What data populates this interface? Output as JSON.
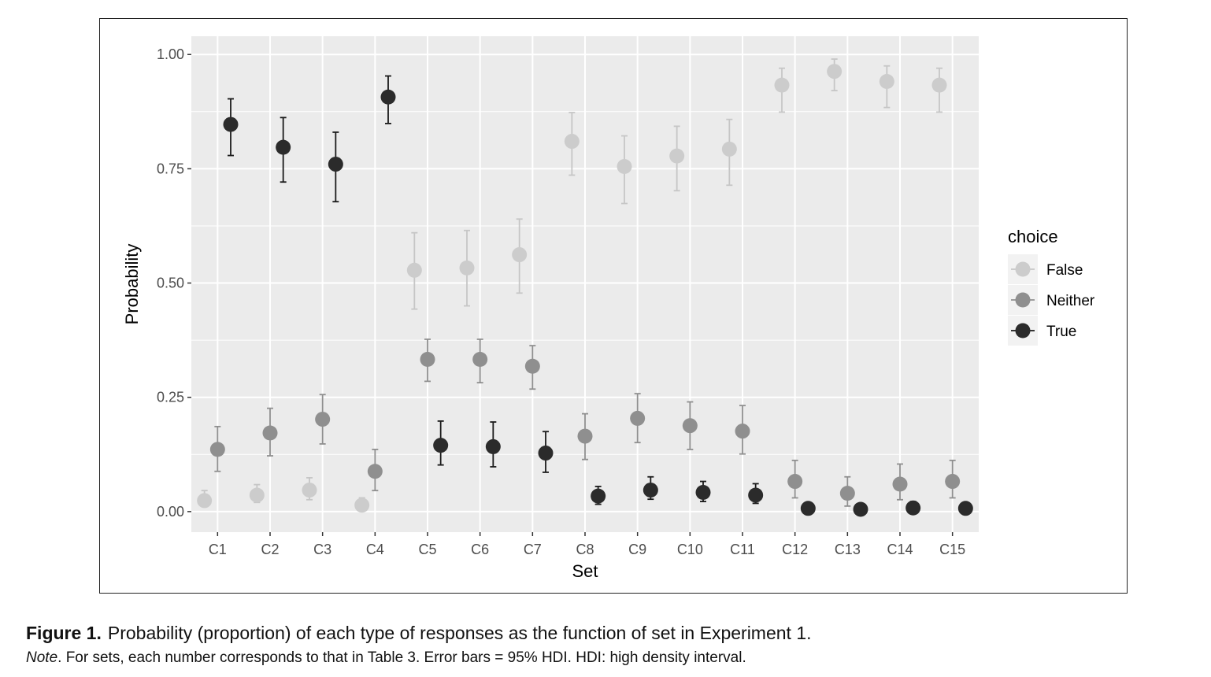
{
  "chart_data": {
    "type": "scatter",
    "xlabel": "Set",
    "ylabel": "Probability",
    "categories": [
      "C1",
      "C2",
      "C3",
      "C4",
      "C5",
      "C6",
      "C7",
      "C8",
      "C9",
      "C10",
      "C11",
      "C12",
      "C13",
      "C14",
      "C15"
    ],
    "ylim": [
      -0.045,
      1.04
    ],
    "yticks": [
      0.0,
      0.25,
      0.5,
      0.75,
      1.0
    ],
    "ytick_labels": [
      "0.00",
      "0.25",
      "0.50",
      "0.75",
      "1.00"
    ],
    "grid": true,
    "legend": {
      "title": "choice",
      "position": "right"
    },
    "series": [
      {
        "name": "False",
        "color": "#cccccc",
        "errorbar_color": "#c6c6c6",
        "values": [
          0.024,
          0.036,
          0.047,
          0.014,
          0.528,
          0.533,
          0.562,
          0.81,
          0.755,
          0.778,
          0.793,
          0.933,
          0.963,
          0.941,
          0.933
        ],
        "lower": [
          0.012,
          0.02,
          0.026,
          0.005,
          0.443,
          0.45,
          0.478,
          0.736,
          0.674,
          0.702,
          0.714,
          0.874,
          0.921,
          0.884,
          0.874
        ],
        "upper": [
          0.046,
          0.059,
          0.074,
          0.03,
          0.61,
          0.615,
          0.64,
          0.873,
          0.822,
          0.843,
          0.858,
          0.97,
          0.99,
          0.975,
          0.97
        ]
      },
      {
        "name": "Neither",
        "color": "#8f8f8f",
        "errorbar_color": "#8f8f8f",
        "values": [
          0.136,
          0.172,
          0.202,
          0.088,
          0.333,
          0.333,
          0.318,
          0.165,
          0.204,
          0.188,
          0.176,
          0.066,
          0.04,
          0.06,
          0.066
        ],
        "lower": [
          0.088,
          0.122,
          0.148,
          0.046,
          0.285,
          0.282,
          0.268,
          0.114,
          0.151,
          0.136,
          0.126,
          0.03,
          0.012,
          0.026,
          0.03
        ],
        "upper": [
          0.186,
          0.226,
          0.256,
          0.136,
          0.377,
          0.377,
          0.363,
          0.214,
          0.258,
          0.24,
          0.232,
          0.112,
          0.076,
          0.104,
          0.112
        ]
      },
      {
        "name": "True",
        "color": "#2b2b2b",
        "errorbar_color": "#1a1a1a",
        "values": [
          0.847,
          0.797,
          0.76,
          0.907,
          0.145,
          0.142,
          0.128,
          0.034,
          0.047,
          0.042,
          0.036,
          0.007,
          0.005,
          0.008,
          0.007
        ],
        "lower": [
          0.779,
          0.721,
          0.678,
          0.849,
          0.102,
          0.098,
          0.086,
          0.016,
          0.027,
          0.022,
          0.018,
          0.001,
          0.0,
          0.001,
          0.001
        ],
        "upper": [
          0.903,
          0.862,
          0.83,
          0.953,
          0.198,
          0.196,
          0.175,
          0.055,
          0.076,
          0.066,
          0.061,
          0.02,
          0.016,
          0.022,
          0.02
        ]
      }
    ]
  },
  "caption": {
    "label": "Figure 1.",
    "title": "Probability (proportion) of each type of responses as the function of set in Experiment 1.",
    "note_label": "Note",
    "note_text": ". For sets, each number corresponds to that in Table 3. Error bars = 95% HDI. HDI: high density interval."
  }
}
